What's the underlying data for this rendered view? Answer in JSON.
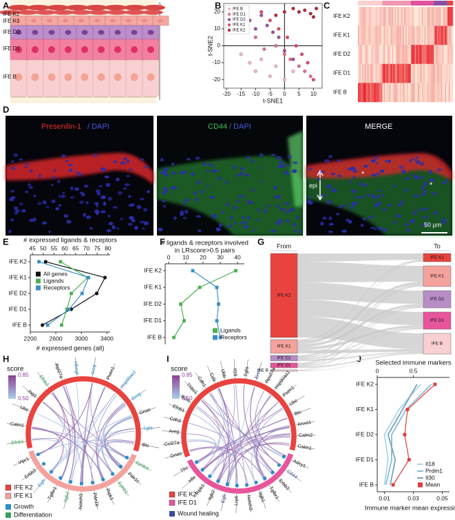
{
  "panels": [
    "A",
    "B",
    "C",
    "D",
    "E",
    "F",
    "G",
    "H",
    "I",
    "J"
  ],
  "skin_layers": [
    "IFE K2",
    "IFE K1",
    "IFE D2",
    "IFE D1",
    "IFE B"
  ],
  "heatmap": {
    "rows": [
      "IFE K2",
      "IFE K1",
      "IFE D2",
      "IFE D1",
      "IFE B"
    ]
  },
  "micrographs": {
    "panels": [
      {
        "label": "Presenilin-1",
        "stain": "/ DAPI"
      },
      {
        "label": "CD44",
        "stain": "/ DAPI"
      },
      {
        "label": "MERGE"
      }
    ],
    "annotations": [
      "epi",
      "*",
      "*"
    ],
    "scale_bar": "50 μm"
  },
  "sankey": {
    "from_title": "From",
    "to_title": "To",
    "from": [
      "IFE K2",
      "IFE K1",
      "IFE D2",
      "IFE D1",
      "IFE B"
    ],
    "to": [
      "IFE K2",
      "IFE K1",
      "IFE D2",
      "IFE D1",
      "IFE B"
    ],
    "colors": [
      "#e8433f",
      "#f4a29d",
      "#b88cc6",
      "#e8559a",
      "#f9d0d2"
    ]
  },
  "chord_h": {
    "score_title": "score",
    "score_ticks": [
      0.85,
      {
        "value": 0.5,
        "label": "0.50"
      }
    ],
    "groups": [
      {
        "name": "IFE K2",
        "color": "#e8433f",
        "genes": [
          {
            "name": "Efnb1",
            "color": "#3aa05a"
          },
          {
            "name": "Calm1"
          },
          {
            "name": "Ubc"
          },
          {
            "name": "Jag1"
          },
          {
            "name": "Efnb2",
            "color": "#3aa05a"
          },
          {
            "name": "Rpl27a"
          },
          {
            "name": "Hbegf",
            "color": "#2a8fc8"
          },
          {
            "name": "Areg",
            "color": "#2a8fc8"
          },
          {
            "name": "Psen1"
          },
          {
            "name": "Hsp90aa1",
            "color": "#2a8fc8"
          },
          {
            "name": "Ereg",
            "color": "#2a8fc8"
          },
          {
            "name": "Gnas"
          },
          {
            "name": "Tgfa",
            "color": "#2a8fc8"
          },
          {
            "name": "Btc"
          }
        ]
      },
      {
        "name": "IFE K1",
        "color": "#f4a29d",
        "genes": [
          {
            "name": "Ephb4",
            "color": "#3aa05a"
          },
          {
            "name": "Pde1c"
          },
          {
            "name": "Ephb1",
            "color": "#3aa05a"
          },
          {
            "name": "Ripk1"
          },
          {
            "name": "Pde1b"
          },
          {
            "name": "Notch3"
          },
          {
            "name": "Itgb2",
            "color": "#3aa05a"
          },
          {
            "name": "Tgfbr1"
          },
          {
            "name": "Egfr",
            "color": "#2a8fc8"
          },
          {
            "name": "Erbb3"
          },
          {
            "name": "Vipr1"
          }
        ]
      }
    ],
    "categories": [
      {
        "name": "Growth",
        "color": "#2a8fc8"
      },
      {
        "name": "Differentiation",
        "color": "#3aa05a"
      }
    ]
  },
  "chord_i": {
    "score_title": "score",
    "score_ticks": [
      0.85,
      {
        "value": 0.5,
        "label": "0.50"
      }
    ],
    "groups": [
      {
        "name": "IFE K2",
        "color": "#e8433f",
        "genes": [
          {
            "name": "Gnas"
          },
          {
            "name": "Ccl27a"
          },
          {
            "name": "Areg"
          },
          {
            "name": "Cdh3"
          },
          {
            "name": "Efnb1"
          },
          {
            "name": "B2m"
          },
          {
            "name": "Thbs1"
          },
          {
            "name": "Cdh1"
          },
          {
            "name": "Cd9"
          },
          {
            "name": "Ubb"
          },
          {
            "name": "Il18"
          },
          {
            "name": "Tgfa"
          },
          {
            "name": "Ereg",
            "color": "#3a4aa0"
          },
          {
            "name": "Rps27a"
          },
          {
            "name": "Hsp90aa1"
          },
          {
            "name": "Psen1"
          },
          {
            "name": "Ubc"
          },
          {
            "name": "Btc"
          },
          {
            "name": "Anxa1"
          },
          {
            "name": "Calm2"
          },
          {
            "name": "Calm1"
          }
        ]
      },
      {
        "name": "IFE D1",
        "color": "#e8559a",
        "genes": [
          {
            "name": "Adcy1"
          },
          {
            "name": "Cd44",
            "color": "#3a4aa0"
          },
          {
            "name": "Erbb3"
          },
          {
            "name": "Tgfbr1"
          },
          {
            "name": "Itgb1"
          },
          {
            "name": "Notch3"
          },
          {
            "name": "Lrp6"
          },
          {
            "name": "Egfr",
            "color": "#3a4aa0"
          },
          {
            "name": "Itgb2"
          },
          {
            "name": "Ripk1"
          },
          {
            "name": "Hfe"
          },
          {
            "name": "Tfrc"
          }
        ]
      }
    ],
    "categories": [
      {
        "name": "Wound healing",
        "color": "#3a4aa0"
      }
    ]
  },
  "chart_data": [
    {
      "type": "scatter",
      "xlabel": "t-SNE1",
      "ylabel": "t-SNE2",
      "xlim": [
        -21,
        13
      ],
      "ylim": [
        -25,
        25
      ],
      "xticks": [
        -20,
        -15,
        -10,
        -5,
        0,
        5,
        10
      ],
      "yticks": [
        -20,
        -10,
        0,
        10,
        20
      ],
      "zero_lines": true,
      "legend": "upper left",
      "series": [
        {
          "name": "IFE B",
          "color": "#f5b8c4",
          "x": [
            -15,
            -12,
            -10,
            -8,
            -5,
            -3,
            0,
            3
          ],
          "y": [
            -5,
            -10,
            -15,
            -8,
            -18,
            -12,
            -20,
            -15
          ]
        },
        {
          "name": "IFE D1",
          "color": "#e0708f",
          "x": [
            -10,
            -7,
            -3,
            0,
            2,
            5,
            7,
            9
          ],
          "y": [
            5,
            -2,
            0,
            -5,
            -8,
            -12,
            -15,
            -18
          ]
        },
        {
          "name": "IFE D2",
          "color": "#9c4f9e",
          "x": [
            -12,
            -10,
            -8,
            -6,
            -4,
            -2,
            0,
            3
          ],
          "y": [
            15,
            10,
            18,
            12,
            8,
            5,
            -3,
            -8
          ]
        },
        {
          "name": "IFE K1",
          "color": "#e04a6a",
          "x": [
            -8,
            -5,
            -2,
            1,
            4,
            6,
            8,
            10
          ],
          "y": [
            20,
            15,
            10,
            5,
            0,
            -5,
            -10,
            -20
          ]
        },
        {
          "name": "IFE K2",
          "color": "#b0283a",
          "x": [
            -3,
            0,
            3,
            5,
            7,
            9,
            10,
            11
          ],
          "y": [
            18,
            20,
            22,
            20,
            21,
            19,
            17,
            22
          ]
        }
      ]
    },
    {
      "type": "line",
      "x2label": "# expressed ligands & receptors",
      "xlabel": "# expressed genes (all)",
      "categories": [
        "IFE K2",
        "IFE K1",
        "IFE D2",
        "IFE D1",
        "IFE B"
      ],
      "xlim": [
        2200,
        3450
      ],
      "xticks": [
        2200,
        2600,
        3000,
        3400
      ],
      "x2lim": [
        44,
        81
      ],
      "x2ticks": [
        45,
        50,
        55,
        60,
        65,
        70,
        75,
        80
      ],
      "legend": "upper left",
      "series": [
        {
          "name": "All genes",
          "color": "#111111",
          "marker": "circle",
          "values": [
            2440,
            3370,
            3240,
            2840,
            2390
          ]
        },
        {
          "name": "Ligands",
          "color": "#4caf50",
          "marker": "square",
          "axis": "x2",
          "values": [
            58,
            70.5,
            63,
            61,
            58.5
          ]
        },
        {
          "name": "Receptors",
          "color": "#3a8fc6",
          "marker": "square",
          "axis": "x2",
          "values": [
            48,
            71,
            68,
            62,
            52
          ]
        }
      ]
    },
    {
      "type": "line",
      "title": [
        "# ligands & receptors involved",
        "in LRscore>0.5 pairs"
      ],
      "categories": [
        "IFE K2",
        "IFE K1",
        "IFE D2",
        "IFE D1",
        "IFE B"
      ],
      "x2lim": [
        -2,
        44
      ],
      "x2ticks": [
        0,
        10,
        20,
        30,
        40
      ],
      "legend": "lower right",
      "series": [
        {
          "name": "Ligands",
          "color": "#4caf50",
          "marker": "square",
          "axis": "x2",
          "values": [
            39,
            18,
            7,
            9,
            3
          ]
        },
        {
          "name": "Receptors",
          "color": "#3a8fc6",
          "marker": "square",
          "axis": "x2",
          "values": [
            14,
            28,
            29,
            28,
            30
          ]
        }
      ]
    },
    {
      "type": "line",
      "x2label": "Selected immune markers",
      "xlabel": "Immune marker mean expression",
      "categories": [
        "IFE K2",
        "IFE K1",
        "IFE D2",
        "IFE D1",
        "IFE B"
      ],
      "xlim": [
        0.005,
        0.055
      ],
      "xticks": [
        0.01,
        0.03,
        0.05
      ],
      "x2lim": [
        0,
        1
      ],
      "x2ticks": [
        0,
        0.5
      ],
      "legend": "lower right",
      "series": [
        {
          "name": "Il18",
          "color": "#a9d6ec",
          "axis": "x2",
          "values": [
            0.6,
            0.3,
            0.1,
            0.15,
            0.1
          ]
        },
        {
          "name": "Prdm1",
          "color": "#86bcd9",
          "axis": "x2",
          "values": [
            0.75,
            0.4,
            0.2,
            0.2,
            0.12
          ]
        },
        {
          "name": "Il30",
          "color": "#7aa3b8",
          "axis": "x2",
          "values": [
            0.55,
            0.35,
            0.15,
            0.25,
            0.18
          ]
        },
        {
          "name": "Mean",
          "color": "#e03c3c",
          "marker": "square",
          "values": [
            0.045,
            0.026,
            0.024,
            0.027,
            0.016
          ]
        }
      ]
    }
  ]
}
